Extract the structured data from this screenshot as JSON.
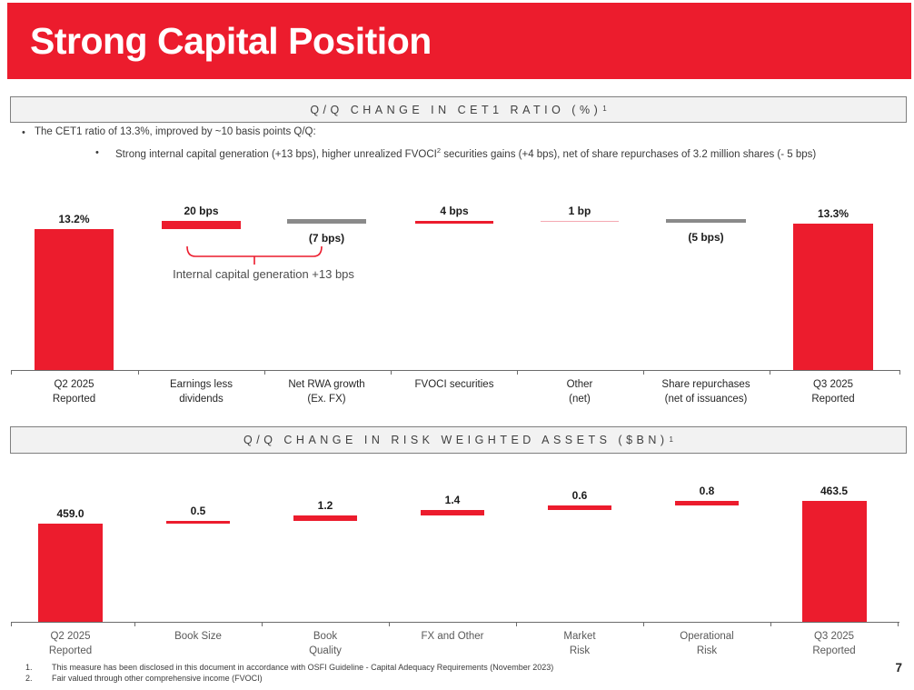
{
  "slide": {
    "title": "Strong Capital Position",
    "page_number": "7",
    "colors": {
      "brand_red": "#EC1C2D",
      "gray_bar": "#8A8A8A",
      "pink_bar": "#F5A9B2",
      "header_bg": "#F2F2F2",
      "header_border": "#7F7F7F"
    }
  },
  "sections": {
    "cet1": {
      "header": "Q/Q CHANGE IN CET1 RATIO (%)",
      "header_sup": "1",
      "bullet1": "The CET1 ratio of 13.3%, improved by ~10 basis points Q/Q:",
      "bullet2_pre": "Strong internal capital generation (+13 bps), higher unrealized FVOCI",
      "bullet2_sup": "2",
      "bullet2_post": " securities gains (+4 bps), net of share repurchases of 3.2 million shares (- 5 bps)"
    },
    "rwa": {
      "header": "Q/Q CHANGE IN RISK WEIGHTED ASSETS ($BN)",
      "header_sup": "1"
    }
  },
  "chart_data": [
    {
      "type": "bar",
      "subtype": "waterfall",
      "title": "Q/Q CHANGE IN CET1 RATIO (%)",
      "title_superscript": "1",
      "unit": "CET1 ratio in %, changes in bps",
      "categories": [
        "Q2 2025 Reported",
        "Earnings less dividends",
        "Net RWA growth (Ex. FX)",
        "FVOCI securities",
        "Other (net)",
        "Share repurchases (net of issuances)",
        "Q3 2025 Reported"
      ],
      "category_lines": [
        [
          "Q2 2025",
          "Reported"
        ],
        [
          "Earnings less",
          "dividends"
        ],
        [
          "Net RWA growth",
          "(Ex. FX)"
        ],
        [
          "FVOCI securities"
        ],
        [
          "Other",
          "(net)"
        ],
        [
          "Share repurchases",
          "(net of issuances)"
        ],
        [
          "Q3 2025",
          "Reported"
        ]
      ],
      "values": [
        13.2,
        0.2,
        -0.07,
        0.04,
        0.01,
        -0.05,
        13.3
      ],
      "value_labels": [
        "13.2%",
        "20 bps",
        "(7 bps)",
        "4 bps",
        "1 bp",
        "(5 bps)",
        "13.3%"
      ],
      "label_side": [
        "above",
        "above",
        "below",
        "above",
        "above",
        "below",
        "above"
      ],
      "bar_color_keys": [
        "red",
        "red",
        "gray",
        "red",
        "pink",
        "gray",
        "red"
      ],
      "annotation": "Internal capital generation +13 bps",
      "legend": "none",
      "grid": "off",
      "axis": "category axis only, truncated value scale"
    },
    {
      "type": "bar",
      "subtype": "waterfall",
      "title": "Q/Q CHANGE IN RISK WEIGHTED ASSETS ($BN)",
      "title_superscript": "1",
      "unit": "$BN",
      "categories": [
        "Q2 2025 Reported",
        "Book Size",
        "Book Quality",
        "FX and Other",
        "Market Risk",
        "Operational Risk",
        "Q3 2025 Reported"
      ],
      "category_lines": [
        [
          "Q2 2025",
          "Reported"
        ],
        [
          "Book Size"
        ],
        [
          "Book",
          "Quality"
        ],
        [
          "FX and Other"
        ],
        [
          "Market",
          "Risk"
        ],
        [
          "Operational",
          "Risk"
        ],
        [
          "Q3 2025",
          "Reported"
        ]
      ],
      "values": [
        459.0,
        0.5,
        1.2,
        1.4,
        0.6,
        0.8,
        463.5
      ],
      "value_labels": [
        "459.0",
        "0.5",
        "1.2",
        "1.4",
        "0.6",
        "0.8",
        "463.5"
      ],
      "label_side": [
        "above",
        "above",
        "above",
        "above",
        "above",
        "above",
        "above"
      ],
      "bar_color_keys": [
        "red",
        "red",
        "red",
        "red",
        "red",
        "red",
        "red"
      ],
      "annotation": "",
      "legend": "none",
      "grid": "off",
      "axis": "category axis only, truncated value scale"
    }
  ],
  "footnotes": [
    {
      "num": "1.",
      "text": "This measure has been disclosed in this document in accordance with OSFI Guideline - Capital Adequacy Requirements (November 2023)"
    },
    {
      "num": "2.",
      "text": "Fair valued through other comprehensive income (FVOCI)"
    }
  ]
}
